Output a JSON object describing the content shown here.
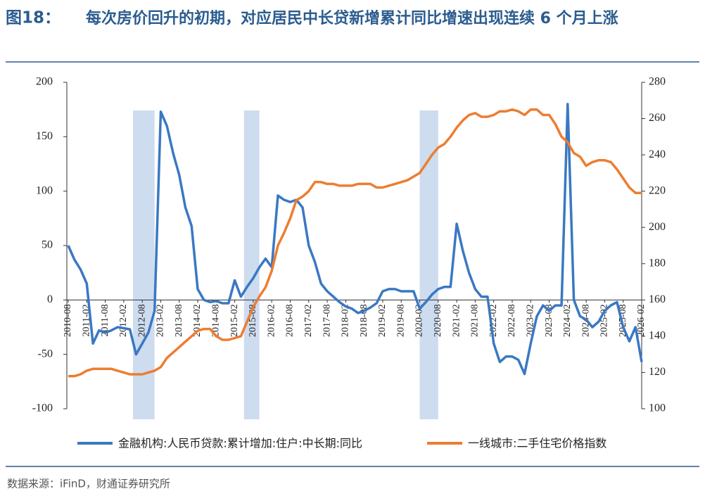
{
  "chart_data": {
    "type": "line",
    "title_label": "图18：",
    "title": "每次房价回升的初期，对应居民中长贷新增累计同比增速出现连续 6 个月上涨",
    "source": "数据来源：iFinD，财通证券研究所",
    "x": [
      "2010-08",
      "2010-10",
      "2010-12",
      "2011-02",
      "2011-04",
      "2011-06",
      "2011-08",
      "2011-10",
      "2011-12",
      "2012-02",
      "2012-04",
      "2012-06",
      "2012-08",
      "2012-10",
      "2012-12",
      "2013-02",
      "2013-04",
      "2013-06",
      "2013-08",
      "2013-10",
      "2013-12",
      "2014-02",
      "2014-04",
      "2014-06",
      "2014-08",
      "2014-10",
      "2014-12",
      "2015-02",
      "2015-04",
      "2015-06",
      "2015-08",
      "2015-10",
      "2015-12",
      "2016-02",
      "2016-04",
      "2016-06",
      "2016-08",
      "2016-10",
      "2016-12",
      "2017-02",
      "2017-04",
      "2017-06",
      "2017-08",
      "2017-10",
      "2017-12",
      "2018-02",
      "2018-04",
      "2018-06",
      "2018-08",
      "2018-10",
      "2018-12",
      "2019-02",
      "2019-04",
      "2019-06",
      "2019-08",
      "2019-10",
      "2019-12",
      "2020-02",
      "2020-04",
      "2020-06",
      "2020-08",
      "2020-10",
      "2020-12",
      "2021-02",
      "2021-04",
      "2021-06",
      "2021-08",
      "2021-10",
      "2021-12",
      "2022-02",
      "2022-04",
      "2022-06",
      "2022-08",
      "2022-10",
      "2022-12",
      "2023-02",
      "2023-04",
      "2023-06",
      "2023-08",
      "2023-10",
      "2023-12",
      "2024-02",
      "2024-04",
      "2024-06",
      "2024-08",
      "2024-10",
      "2024-12",
      "2025-02",
      "2025-04",
      "2025-06",
      "2025-08",
      "2025-10",
      "2025-12",
      "2026-02"
    ],
    "xticks": [
      "2010-08",
      "2011-02",
      "2011-08",
      "2012-02",
      "2012-08",
      "2013-02",
      "2013-08",
      "2014-02",
      "2014-08",
      "2015-02",
      "2015-08",
      "2016-02",
      "2016-08",
      "2017-02",
      "2017-08",
      "2018-02",
      "2018-08",
      "2019-02",
      "2019-08",
      "2020-02",
      "2020-08",
      "2021-02",
      "2021-08",
      "2022-02",
      "2022-08",
      "2023-02",
      "2023-08",
      "2024-02",
      "2024-08",
      "2025-02",
      "2025-08",
      "2026-02"
    ],
    "ylim": [
      -100,
      200
    ],
    "yticks": [
      -100,
      -50,
      0,
      50,
      100,
      150,
      200
    ],
    "y2lim": [
      100,
      280
    ],
    "y2ticks": [
      100,
      120,
      140,
      160,
      180,
      200,
      220,
      240,
      260,
      280
    ],
    "highlight_ranges": [
      [
        "2012-05",
        "2012-12"
      ],
      [
        "2015-05",
        "2015-10"
      ],
      [
        "2020-02",
        "2020-08"
      ]
    ],
    "highlight_color": "#cddcef",
    "series": [
      {
        "name": "金融机构:人民币贷款:累计增加:住户:中长期:同比",
        "color": "#3a78c3",
        "axis": "y",
        "values": [
          50,
          37,
          28,
          15,
          -40,
          -28,
          -30,
          -28,
          -25,
          -26,
          -27,
          -50,
          -40,
          -30,
          -10,
          173,
          160,
          135,
          115,
          85,
          68,
          10,
          0,
          -2,
          -1,
          -3,
          -3,
          18,
          3,
          12,
          20,
          30,
          38,
          30,
          96,
          92,
          90,
          92,
          85,
          50,
          35,
          15,
          8,
          3,
          -2,
          -6,
          -8,
          -12,
          -10,
          -7,
          -3,
          8,
          10,
          10,
          8,
          8,
          8,
          -8,
          -2,
          5,
          10,
          12,
          12,
          70,
          45,
          25,
          10,
          3,
          3,
          -40,
          -57,
          -52,
          -52,
          -55,
          -68,
          -40,
          -15,
          -5,
          -10,
          -5,
          -5,
          180,
          0,
          -15,
          -18,
          -25,
          -20,
          -10,
          -5,
          -2,
          -25,
          -38,
          -25,
          -57
        ]
      },
      {
        "name": "一线城市:二手住宅价格指数",
        "color": "#ed7d31",
        "axis": "y2",
        "values": [
          118,
          118,
          119,
          121,
          122,
          122,
          122,
          122,
          121,
          120,
          119,
          119,
          119,
          120,
          121,
          123,
          128,
          131,
          134,
          137,
          140,
          143,
          144,
          144,
          140,
          138,
          138,
          139,
          140,
          148,
          156,
          162,
          167,
          176,
          190,
          197,
          205,
          215,
          217,
          220,
          225,
          225,
          224,
          224,
          223,
          223,
          223,
          224,
          224,
          224,
          222,
          222,
          223,
          224,
          225,
          226,
          228,
          230,
          235,
          240,
          244,
          246,
          250,
          255,
          259,
          262,
          263,
          261,
          261,
          262,
          264,
          264,
          265,
          264,
          262,
          265,
          265,
          262,
          262,
          257,
          250,
          247,
          241,
          239,
          234,
          236,
          237,
          237,
          236,
          232,
          227,
          222,
          219,
          219
        ]
      }
    ]
  }
}
